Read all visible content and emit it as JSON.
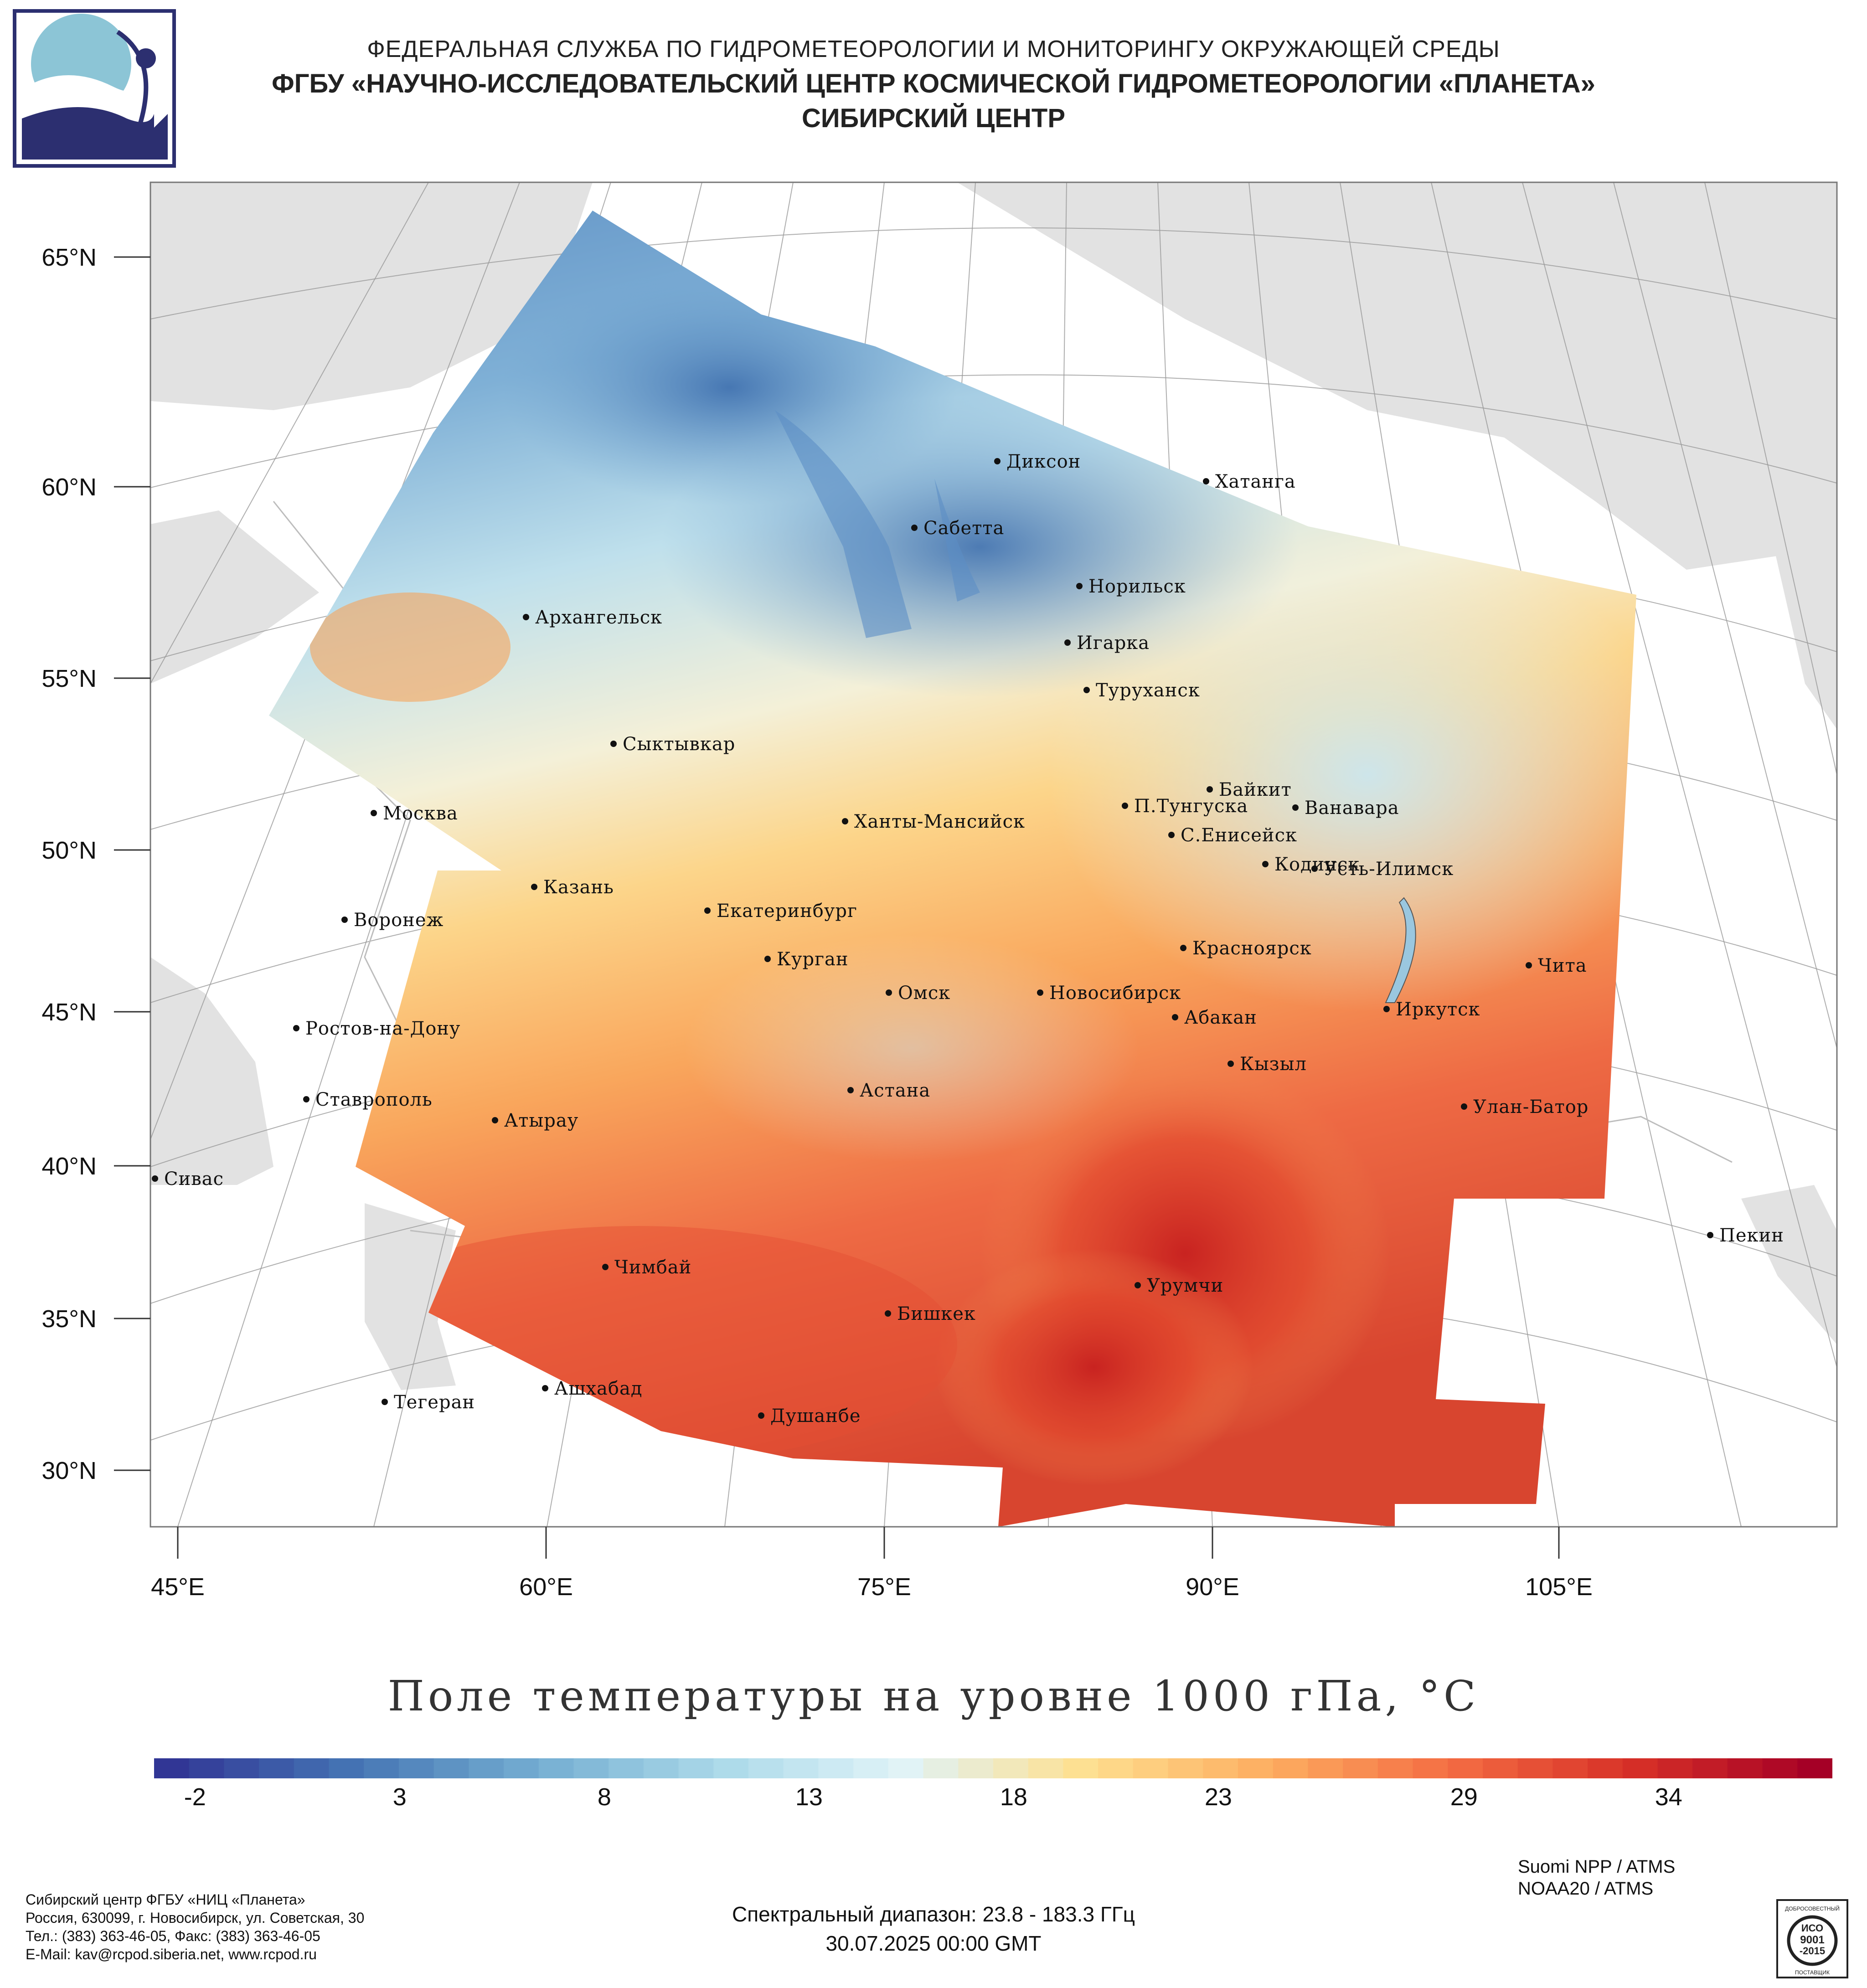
{
  "header": {
    "line1": "ФЕДЕРАЛЬНАЯ СЛУЖБА ПО ГИДРОМЕТЕОРОЛОГИИ И МОНИТОРИНГУ ОКРУЖАЮЩЕЙ СРЕДЫ",
    "line2": "ФГБУ «НАУЧНО-ИССЛЕДОВАТЕЛЬСКИЙ ЦЕНТР КОСМИЧЕСКОЙ ГИДРОМЕТЕОРОЛОГИИ «ПЛАНЕТА»",
    "line3": "СИБИРСКИЙ ЦЕНТР"
  },
  "map": {
    "latitude_labels": [
      "65°N",
      "60°N",
      "55°N",
      "50°N",
      "45°N",
      "40°N",
      "35°N",
      "30°N"
    ],
    "longitude_labels": [
      "45°E",
      "60°E",
      "75°E",
      "90°E",
      "105°E"
    ],
    "cities": [
      {
        "name": "Диксон"
      },
      {
        "name": "Хатанга"
      },
      {
        "name": "Сабетта"
      },
      {
        "name": "Норильск"
      },
      {
        "name": "Архангельск"
      },
      {
        "name": "Игарка"
      },
      {
        "name": "Туруханск"
      },
      {
        "name": "Сыктывкар"
      },
      {
        "name": "Байкит"
      },
      {
        "name": "Москва"
      },
      {
        "name": "Ханты-Мансийск"
      },
      {
        "name": "П.Тунгуска"
      },
      {
        "name": "Ванавара"
      },
      {
        "name": "С.Енисейск"
      },
      {
        "name": "Казань"
      },
      {
        "name": "Кодинск"
      },
      {
        "name": "Усть-Илимск"
      },
      {
        "name": "Воронеж"
      },
      {
        "name": "Екатеринбург"
      },
      {
        "name": "Красноярск"
      },
      {
        "name": "Курган"
      },
      {
        "name": "Чита"
      },
      {
        "name": "Омск"
      },
      {
        "name": "Новосибирск"
      },
      {
        "name": "Иркутск"
      },
      {
        "name": "Ростов-на-Дону"
      },
      {
        "name": "Абакан"
      },
      {
        "name": "Кызыл"
      },
      {
        "name": "Ставрополь"
      },
      {
        "name": "Астана"
      },
      {
        "name": "Улан-Батор"
      },
      {
        "name": "Атырау"
      },
      {
        "name": "Сивас"
      },
      {
        "name": "Пекин"
      },
      {
        "name": "Чимбай"
      },
      {
        "name": "Урумчи"
      },
      {
        "name": "Бишкек"
      },
      {
        "name": "Ашхабад"
      },
      {
        "name": "Тегеран"
      },
      {
        "name": "Душанбе"
      }
    ]
  },
  "chart_title": "Поле температуры на уровне 1000 гПа, °C",
  "colorbar": {
    "ticks": [
      "-2",
      "3",
      "8",
      "13",
      "18",
      "23",
      "29",
      "34"
    ],
    "tick_values": [
      -2,
      3,
      8,
      13,
      18,
      23,
      29,
      34
    ],
    "range": [
      -3,
      38
    ],
    "colors": [
      "#313695",
      "#4575b4",
      "#74add1",
      "#abd9e9",
      "#e0f3f8",
      "#fee090",
      "#fdae61",
      "#f46d43",
      "#d73027",
      "#a50026"
    ]
  },
  "footer": {
    "org_lines": [
      "Сибирский центр ФГБУ «НИЦ «Планета»",
      "Россия, 630099, г. Новосибирск, ул. Советская, 30",
      "Тел.: (383) 363-46-05, Факс: (383) 363-46-05",
      "E-Mail: kav@rcpod.siberia.net, www.rcpod.ru"
    ],
    "spectral": "Спектральный диапазон: 23.8 - 183.3 ГГц",
    "datetime": "30.07.2025 00:00 GMT",
    "satellites": [
      "Suomi NPP / ATMS",
      "NOAA20 / ATMS"
    ],
    "iso": {
      "top": "ДОБРОСОВЕСТНЫЙ",
      "l1": "ИСО",
      "l2": "9001",
      "l3": "-2015",
      "bottom": "ПОСТАВЩИК"
    }
  }
}
